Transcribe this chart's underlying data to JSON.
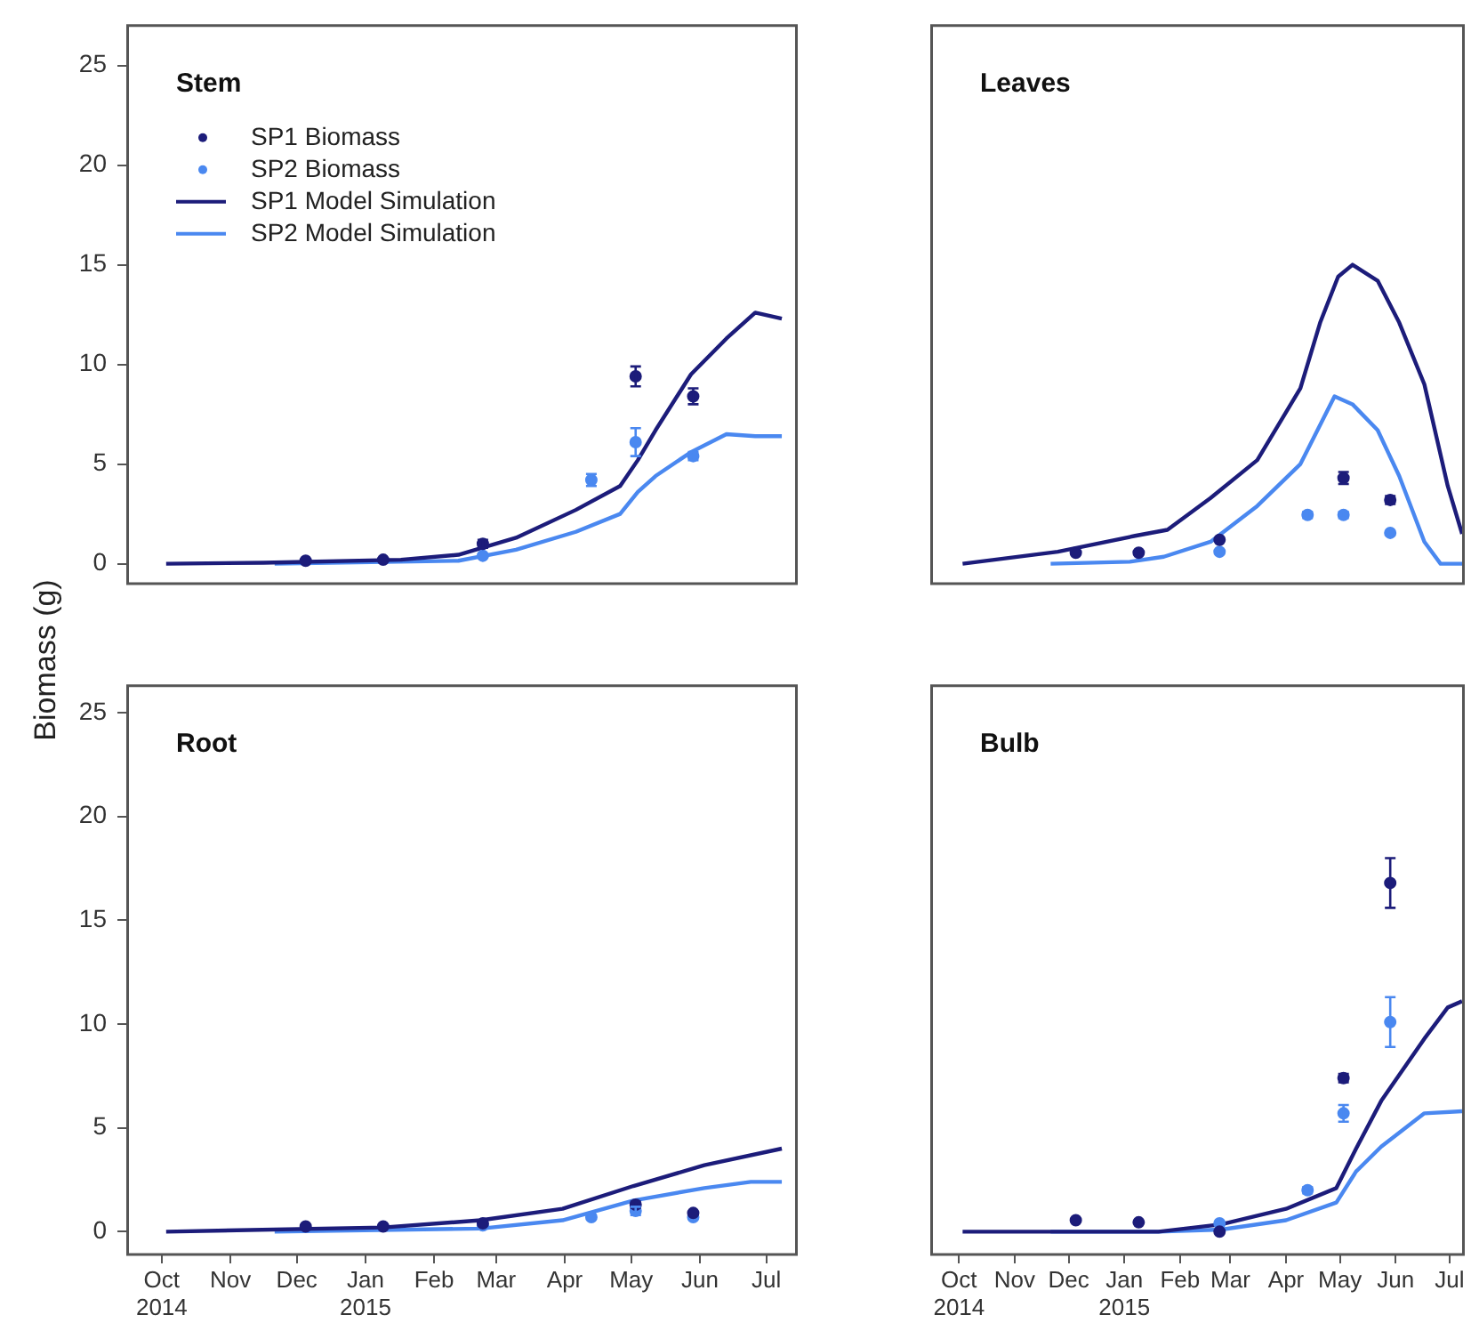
{
  "chart_data": [
    {
      "type": "line",
      "title": "Stem",
      "ylabel": "Biomass (g)",
      "xlim": [
        "2014-09-15",
        "2015-07-14"
      ],
      "ylim": [
        -1,
        27
      ],
      "yticks": [
        0,
        5,
        10,
        15,
        20,
        25
      ],
      "tick_labels": "y",
      "grid": false,
      "legend": "top left",
      "line_style": "solid",
      "series": [
        {
          "name": "SP1 Biomass",
          "type": "scatter",
          "marker": "circle",
          "color": "#1c1c7a",
          "x": [
            "2014-12-05",
            "2015-01-09",
            "2015-02-23",
            "2015-05-03",
            "2015-05-29"
          ],
          "values": [
            0.15,
            0.2,
            1.0,
            9.4,
            8.4
          ],
          "errors": [
            null,
            null,
            0.2,
            0.5,
            0.4
          ]
        },
        {
          "name": "SP2 Biomass",
          "type": "scatter",
          "marker": "circle",
          "color": "#4a88f0",
          "x": [
            "2015-02-23",
            "2015-04-13",
            "2015-05-03",
            "2015-05-29"
          ],
          "values": [
            0.4,
            4.2,
            6.1,
            5.4
          ],
          "errors": [
            null,
            0.3,
            0.7,
            0.2
          ]
        },
        {
          "name": "SP1 Model Simulation",
          "type": "line",
          "color": "#1c1c7a",
          "x": [
            "2014-10-03",
            "2014-11-16",
            "2015-01-17",
            "2015-02-12",
            "2015-03-10",
            "2015-04-06",
            "2015-04-26",
            "2015-05-04",
            "2015-05-12",
            "2015-05-28",
            "2015-06-13",
            "2015-06-26",
            "2015-07-08"
          ],
          "values": [
            0,
            0.05,
            0.2,
            0.45,
            1.3,
            2.7,
            3.9,
            5.2,
            6.7,
            9.5,
            11.3,
            12.6,
            12.3
          ]
        },
        {
          "name": "SP2 Model Simulation",
          "type": "line",
          "color": "#4a88f0",
          "x": [
            "2014-11-21",
            "2015-02-12",
            "2015-03-10",
            "2015-04-06",
            "2015-04-26",
            "2015-05-04",
            "2015-05-12",
            "2015-05-28",
            "2015-06-13",
            "2015-06-26",
            "2015-07-08"
          ],
          "values": [
            0,
            0.15,
            0.7,
            1.6,
            2.5,
            3.6,
            4.4,
            5.6,
            6.5,
            6.4,
            6.4
          ]
        }
      ]
    },
    {
      "type": "line",
      "title": "Leaves",
      "xlim": [
        "2014-09-15",
        "2015-07-08"
      ],
      "ylim": [
        -1,
        27
      ],
      "yticks": [
        0,
        5,
        10,
        15,
        20,
        25
      ],
      "tick_labels": false,
      "grid": false,
      "line_style": "solid",
      "series": [
        {
          "type": "scatter",
          "marker": "circle",
          "color": "#1c1c7a",
          "x": [
            "2014-12-05",
            "2015-01-09",
            "2015-02-23",
            "2015-05-03",
            "2015-05-29"
          ],
          "values": [
            0.55,
            0.55,
            1.2,
            4.3,
            3.2
          ],
          "errors": [
            null,
            null,
            null,
            0.3,
            0.2
          ]
        },
        {
          "type": "scatter",
          "marker": "circle",
          "color": "#4a88f0",
          "x": [
            "2015-02-23",
            "2015-04-13",
            "2015-05-03",
            "2015-05-29"
          ],
          "values": [
            0.6,
            2.45,
            2.45,
            1.55
          ],
          "errors": [
            null,
            0.15,
            0.15,
            null
          ]
        },
        {
          "type": "line",
          "color": "#1c1c7a",
          "x": [
            "2014-10-03",
            "2014-11-25",
            "2015-01-07",
            "2015-01-25",
            "2015-02-18",
            "2015-03-16",
            "2015-04-09",
            "2015-04-20",
            "2015-04-30",
            "2015-05-08",
            "2015-05-22",
            "2015-06-03",
            "2015-06-17",
            "2015-06-30",
            "2015-07-08"
          ],
          "values": [
            0,
            0.6,
            1.4,
            1.7,
            3.3,
            5.2,
            8.8,
            12.1,
            14.4,
            15.0,
            14.2,
            12.1,
            9.0,
            3.9,
            1.5
          ]
        },
        {
          "type": "line",
          "color": "#4a88f0",
          "x": [
            "2014-11-21",
            "2015-01-04",
            "2015-01-23",
            "2015-02-18",
            "2015-03-16",
            "2015-04-09",
            "2015-04-28",
            "2015-05-08",
            "2015-05-22",
            "2015-06-03",
            "2015-06-17",
            "2015-06-26",
            "2015-07-08"
          ],
          "values": [
            0,
            0.1,
            0.35,
            1.1,
            2.9,
            5.0,
            8.4,
            8.0,
            6.7,
            4.4,
            1.1,
            0,
            0
          ]
        }
      ]
    },
    {
      "type": "line",
      "title": "Root",
      "xlim": [
        "2014-09-15",
        "2015-07-14"
      ],
      "ylim": [
        -1.1,
        26.3
      ],
      "yticks": [
        0,
        5,
        10,
        15,
        20,
        25
      ],
      "xticks": [
        {
          "value": "2014-10-01",
          "label": "Oct\n2014"
        },
        {
          "value": "2014-11-01",
          "label": "Nov"
        },
        {
          "value": "2014-12-01",
          "label": "Dec"
        },
        {
          "value": "2015-01-01",
          "label": "Jan\n2015"
        },
        {
          "value": "2015-02-01",
          "label": "Feb"
        },
        {
          "value": "2015-03-01",
          "label": "Mar"
        },
        {
          "value": "2015-04-01",
          "label": "Apr"
        },
        {
          "value": "2015-05-01",
          "label": "May"
        },
        {
          "value": "2015-06-01",
          "label": "Jun"
        },
        {
          "value": "2015-07-01",
          "label": "Jul"
        }
      ],
      "grid": false,
      "line_style": "solid",
      "series": [
        {
          "type": "scatter",
          "marker": "circle",
          "color": "#1c1c7a",
          "x": [
            "2014-12-05",
            "2015-01-09",
            "2015-02-23",
            "2015-05-03",
            "2015-05-29"
          ],
          "values": [
            0.25,
            0.25,
            0.4,
            1.3,
            0.9
          ],
          "errors": [
            null,
            null,
            null,
            0.15,
            null
          ]
        },
        {
          "type": "scatter",
          "marker": "circle",
          "color": "#4a88f0",
          "x": [
            "2015-02-23",
            "2015-04-13",
            "2015-05-03",
            "2015-05-29"
          ],
          "values": [
            0.3,
            0.7,
            1.0,
            0.7
          ],
          "errors": [
            null,
            null,
            0.2,
            null
          ]
        },
        {
          "type": "line",
          "color": "#1c1c7a",
          "x": [
            "2014-10-03",
            "2015-01-09",
            "2015-02-22",
            "2015-03-31",
            "2015-05-02",
            "2015-06-03",
            "2015-07-08"
          ],
          "values": [
            0,
            0.2,
            0.55,
            1.1,
            2.2,
            3.2,
            4.0
          ]
        },
        {
          "type": "line",
          "color": "#4a88f0",
          "x": [
            "2014-11-21",
            "2015-02-22",
            "2015-03-31",
            "2015-05-02",
            "2015-06-03",
            "2015-06-24",
            "2015-07-08"
          ],
          "values": [
            0,
            0.15,
            0.55,
            1.5,
            2.1,
            2.4,
            2.4
          ]
        }
      ]
    },
    {
      "type": "line",
      "title": "Bulb",
      "xlim": [
        "2014-09-15",
        "2015-07-08"
      ],
      "ylim": [
        -1.1,
        26.3
      ],
      "yticks": [
        0,
        5,
        10,
        15,
        20,
        25
      ],
      "xticks": [
        {
          "value": "2014-10-01",
          "label": "Oct\n2014"
        },
        {
          "value": "2014-11-01",
          "label": "Nov"
        },
        {
          "value": "2014-12-01",
          "label": "Dec"
        },
        {
          "value": "2015-01-01",
          "label": "Jan\n2015"
        },
        {
          "value": "2015-02-01",
          "label": "Feb"
        },
        {
          "value": "2015-03-01",
          "label": "Mar"
        },
        {
          "value": "2015-04-01",
          "label": "Apr"
        },
        {
          "value": "2015-05-01",
          "label": "May"
        },
        {
          "value": "2015-06-01",
          "label": "Jun"
        },
        {
          "value": "2015-07-01",
          "label": "Jul"
        }
      ],
      "tick_labels": "x",
      "grid": false,
      "line_style": "solid",
      "series": [
        {
          "type": "scatter",
          "marker": "circle",
          "color": "#1c1c7a",
          "x": [
            "2014-12-05",
            "2015-01-09",
            "2015-02-23",
            "2015-05-03",
            "2015-05-29"
          ],
          "values": [
            0.55,
            0.45,
            0,
            7.4,
            16.8
          ],
          "errors": [
            null,
            null,
            null,
            0.2,
            1.2
          ]
        },
        {
          "type": "scatter",
          "marker": "circle",
          "color": "#4a88f0",
          "x": [
            "2015-02-23",
            "2015-04-13",
            "2015-05-03",
            "2015-05-29"
          ],
          "values": [
            0.4,
            2.0,
            5.7,
            10.1
          ],
          "errors": [
            null,
            0.15,
            0.4,
            1.2
          ]
        },
        {
          "type": "line",
          "color": "#1c1c7a",
          "x": [
            "2014-10-03",
            "2015-01-20",
            "2015-02-24",
            "2015-04-01",
            "2015-04-29",
            "2015-05-10",
            "2015-05-24",
            "2015-06-17",
            "2015-06-30",
            "2015-07-08"
          ],
          "values": [
            0,
            0,
            0.35,
            1.1,
            2.1,
            4.0,
            6.3,
            9.3,
            10.8,
            11.1
          ]
        },
        {
          "type": "line",
          "color": "#4a88f0",
          "x": [
            "2014-11-21",
            "2015-01-20",
            "2015-02-24",
            "2015-04-01",
            "2015-04-29",
            "2015-05-10",
            "2015-05-24",
            "2015-06-17",
            "2015-07-08"
          ],
          "values": [
            0,
            0,
            0.1,
            0.55,
            1.4,
            2.9,
            4.1,
            5.7,
            5.8
          ]
        }
      ]
    }
  ]
}
